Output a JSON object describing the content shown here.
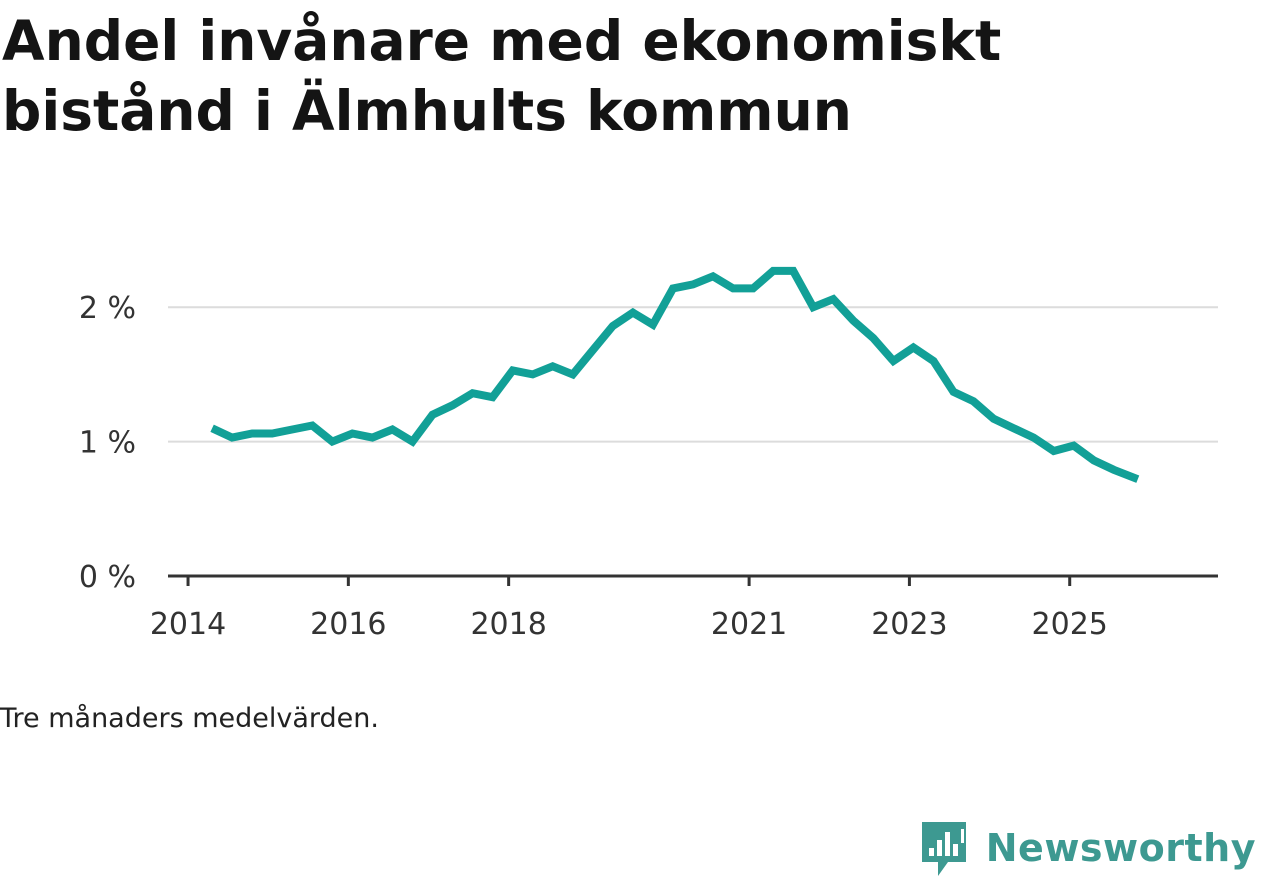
{
  "title": "Andel invånare med ekonomiskt bistånd i Älmhults kommun",
  "footnote": "Tre månaders medelvärden.",
  "brand": {
    "name": "Newsworthy",
    "color": "#3d9991",
    "icon": "newsworthy-logo-icon"
  },
  "colors": {
    "line": "#12a097",
    "grid": "#dcdcdc",
    "axis": "#333333"
  },
  "chart_data": {
    "type": "line",
    "title": "Andel invånare med ekonomiskt bistånd i Älmhults kommun",
    "xlabel": "",
    "ylabel": "",
    "xlim": [
      2013.75,
      2026.85
    ],
    "ylim": [
      0,
      2.5
    ],
    "y_ticks": [
      {
        "value": 0,
        "label": "0 %"
      },
      {
        "value": 1,
        "label": "1 %"
      },
      {
        "value": 2,
        "label": "2 %"
      }
    ],
    "x_ticks": [
      {
        "value": 2014,
        "label": "2014"
      },
      {
        "value": 2016,
        "label": "2016"
      },
      {
        "value": 2018,
        "label": "2018"
      },
      {
        "value": 2021,
        "label": "2021"
      },
      {
        "value": 2023,
        "label": "2023"
      },
      {
        "value": 2025,
        "label": "2025"
      }
    ],
    "grid": true,
    "series": [
      {
        "name": "Andel invånare med ekonomiskt bistånd",
        "x": [
          2014.3,
          2014.55,
          2014.8,
          2015.05,
          2015.3,
          2015.55,
          2015.8,
          2016.05,
          2016.3,
          2016.55,
          2016.8,
          2017.05,
          2017.3,
          2017.55,
          2017.8,
          2018.05,
          2018.3,
          2018.55,
          2018.8,
          2019.05,
          2019.3,
          2019.55,
          2019.8,
          2020.05,
          2020.3,
          2020.55,
          2020.8,
          2021.05,
          2021.3,
          2021.55,
          2021.8,
          2022.05,
          2022.3,
          2022.55,
          2022.8,
          2023.05,
          2023.3,
          2023.55,
          2023.8,
          2024.05,
          2024.3,
          2024.55,
          2024.8,
          2025.05,
          2025.3,
          2025.55,
          2025.85
        ],
        "values": [
          1.1,
          1.03,
          1.06,
          1.06,
          1.09,
          1.12,
          1.0,
          1.06,
          1.03,
          1.09,
          1.0,
          1.2,
          1.27,
          1.36,
          1.33,
          1.53,
          1.5,
          1.56,
          1.5,
          1.68,
          1.86,
          1.96,
          1.87,
          2.14,
          2.17,
          2.23,
          2.14,
          2.14,
          2.27,
          2.27,
          2.0,
          2.06,
          1.9,
          1.77,
          1.6,
          1.7,
          1.6,
          1.37,
          1.3,
          1.17,
          1.1,
          1.03,
          0.93,
          0.97,
          0.86,
          0.79,
          0.72
        ]
      }
    ]
  }
}
